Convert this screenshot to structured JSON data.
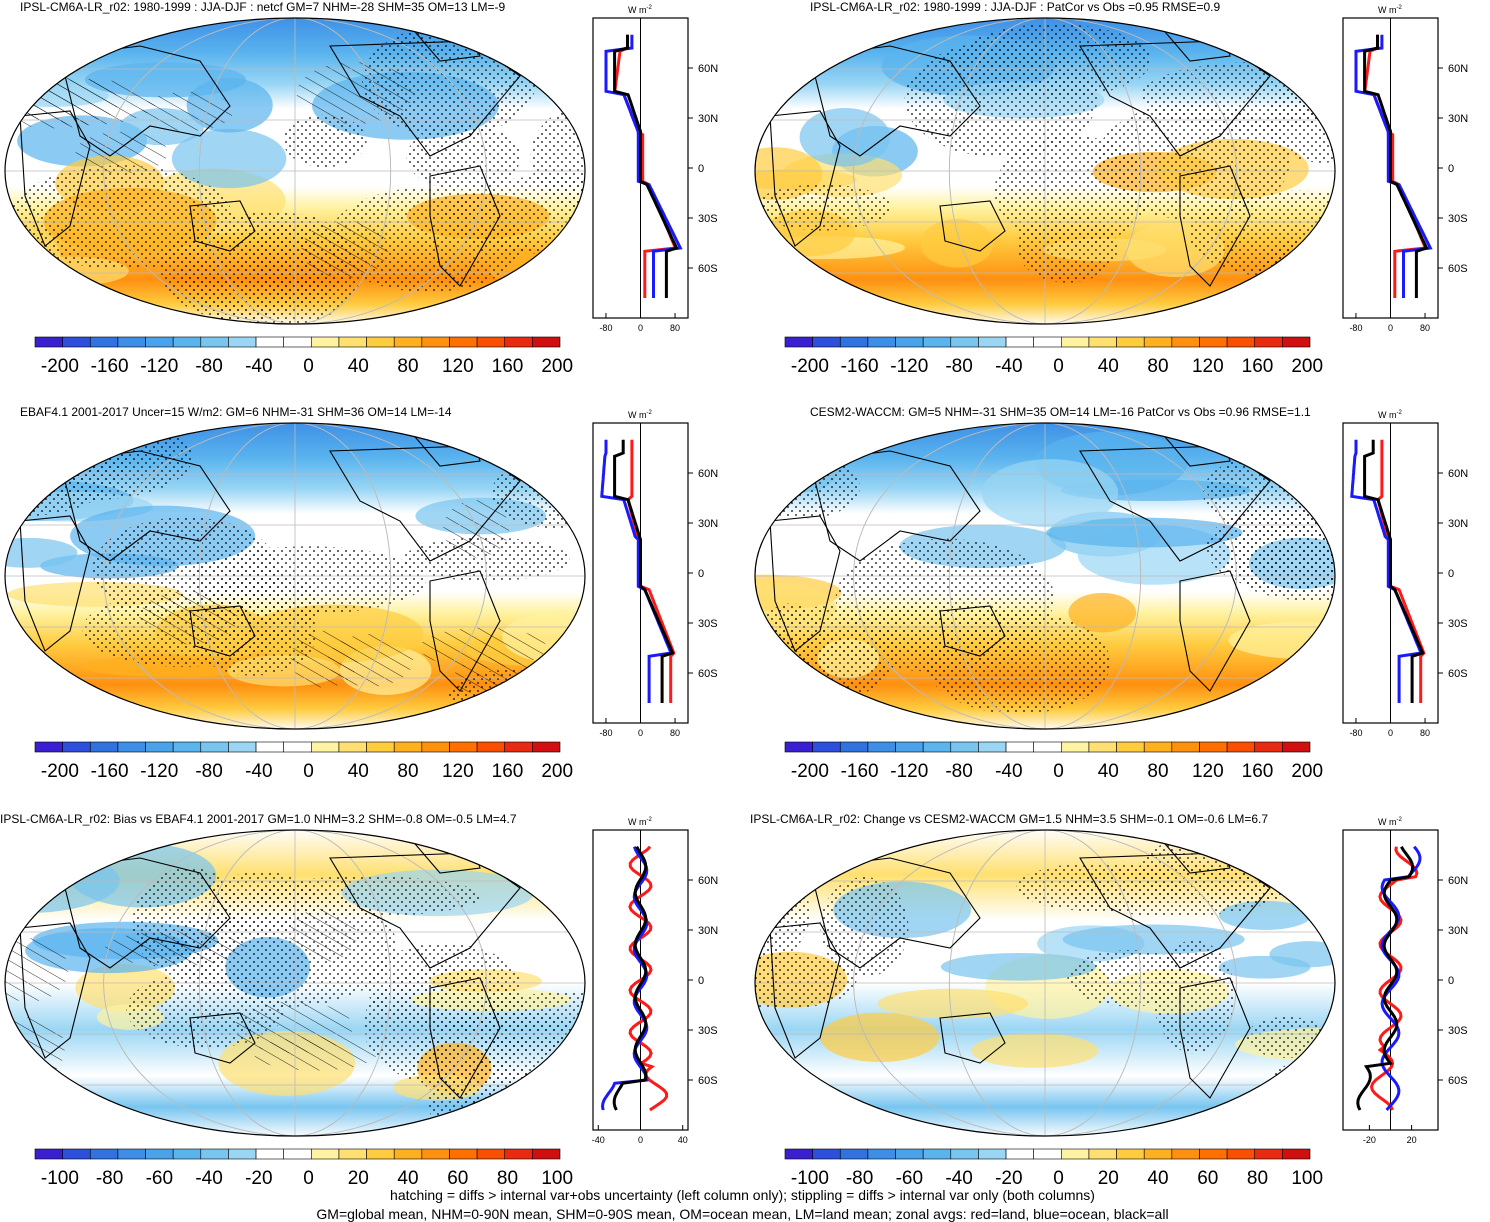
{
  "panels": [
    {
      "title": "IPSL-CM6A-LR_r02: 1980-1999 : JJA-DJF : netcf GM=7 NHM=-28 SHM=35 OM=13 LM=-9",
      "scale": "main",
      "hatched": true,
      "zonal": "A"
    },
    {
      "title": "IPSL-CM6A-LR_r02: 1980-1999 : JJA-DJF : PatCor vs Obs =0.95 RMSE=0.9",
      "scale": "main",
      "hatched": false,
      "zonal": "A"
    },
    {
      "title": "EBAF4.1 2001-2017 Uncer=15 W/m2: GM=6 NHM=-31 SHM=36 OM=14 LM=-14",
      "scale": "main",
      "hatched": true,
      "zonal": "B"
    },
    {
      "title": "CESM2-WACCM: GM=5 NHM=-31 SHM=35 OM=14 LM=-16 PatCor vs Obs =0.96 RMSE=1.1",
      "scale": "main",
      "hatched": false,
      "zonal": "B"
    },
    {
      "title": "IPSL-CM6A-LR_r02: Bias vs EBAF4.1 2001-2017 GM=1.0 NHM=3.2 SHM=-0.8 OM=-0.5 LM=4.7",
      "scale": "diff",
      "hatched": true,
      "zonal": "C"
    },
    {
      "title": "IPSL-CM6A-LR_r02: Change vs CESM2-WACCM GM=1.5 NHM=3.5 SHM=-0.1 OM=-0.6 LM=6.7",
      "scale": "diff",
      "hatched": false,
      "zonal": "D"
    }
  ],
  "scales": {
    "main": {
      "labels": [
        "-200",
        "-160",
        "-120",
        "-80",
        "-40",
        "0",
        "40",
        "80",
        "120",
        "160",
        "200"
      ],
      "zonal_ticks": [
        {
          "v": -80,
          "t": "-80"
        },
        {
          "v": 0,
          "t": "0"
        },
        {
          "v": 80,
          "t": "80"
        }
      ],
      "zonal_range": [
        -110,
        110
      ]
    },
    "diff": {
      "labels": [
        "-100",
        "-80",
        "-60",
        "-40",
        "-20",
        "0",
        "20",
        "40",
        "60",
        "80",
        "100"
      ],
      "zonal_ticks_left": [
        {
          "v": -40,
          "t": "-40"
        },
        {
          "v": 0,
          "t": "0"
        },
        {
          "v": 40,
          "t": "40"
        }
      ],
      "zonal_ticks_right": [
        {
          "v": -20,
          "t": "-20"
        },
        {
          "v": 20,
          "t": "20"
        }
      ],
      "zonal_range": [
        -45,
        45
      ]
    }
  },
  "colors": [
    "#3a1fd1",
    "#2d4fdc",
    "#2f72e0",
    "#3d8ee6",
    "#4aa3ea",
    "#5ab4ee",
    "#78c5f0",
    "#9ad6f4",
    "#ffffff",
    "#ffffff",
    "#fff2a0",
    "#ffe070",
    "#ffcc40",
    "#ffb020",
    "#ff9010",
    "#ff7000",
    "#f85000",
    "#e82a10",
    "#d01010"
  ],
  "lat_labels": [
    "60N",
    "30N",
    "0",
    "30S",
    "60S"
  ],
  "units": "W m",
  "units_sup": "-2",
  "footer_line1": "hatching = diffs > internal var+obs uncertainty (left column only); stippling = diffs > internal var only (both columns)",
  "footer_line2": "GM=global mean, NHM=0-90N mean, SHM=0-90S mean, OM=ocean mean, LM=land mean; zonal avgs: red=land, blue=ocean, black=all",
  "zonal_legend": {
    "land": "#ff1a1a",
    "ocean": "#1a1aff",
    "all": "#000000"
  }
}
